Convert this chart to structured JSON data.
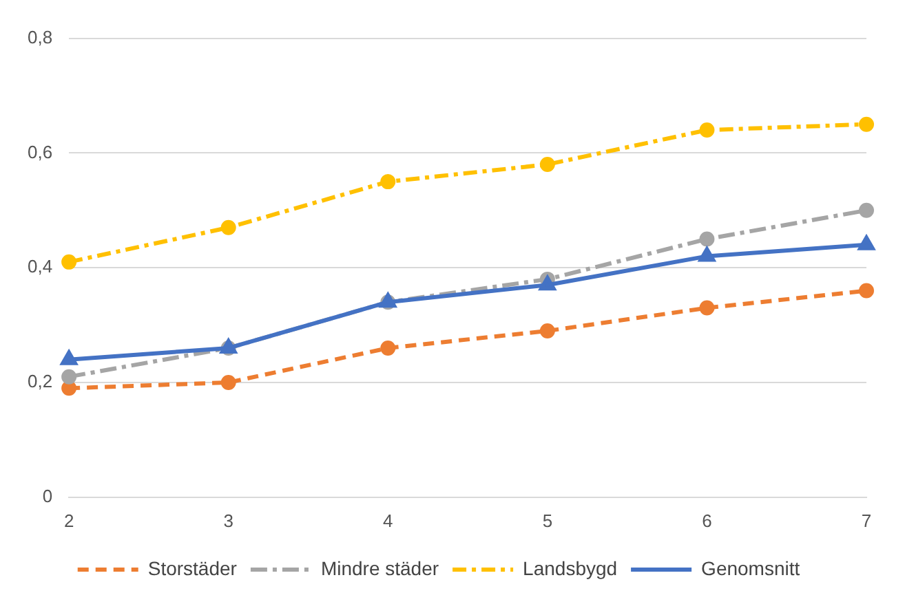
{
  "chart_data": {
    "type": "line",
    "categories": [
      "2",
      "3",
      "4",
      "5",
      "6",
      "7"
    ],
    "series": [
      {
        "name": "Storstäder",
        "color": "#ed7d31",
        "values": [
          0.19,
          0.2,
          0.26,
          0.29,
          0.33,
          0.36
        ],
        "marker": "circle",
        "line_style": "dashed"
      },
      {
        "name": "Mindre städer",
        "color": "#a5a5a5",
        "values": [
          0.21,
          0.26,
          0.34,
          0.38,
          0.45,
          0.5
        ],
        "marker": "circle",
        "line_style": "dashed"
      },
      {
        "name": "Landsbygd",
        "color": "#ffc000",
        "values": [
          0.41,
          0.47,
          0.55,
          0.58,
          0.64,
          0.65
        ],
        "marker": "circle",
        "line_style": "dashed"
      },
      {
        "name": "Genomsnitt",
        "color": "#4472c4",
        "values": [
          0.24,
          0.26,
          0.34,
          0.37,
          0.42,
          0.44
        ],
        "marker": "triangle",
        "line_style": "solid"
      }
    ],
    "ylim": [
      0,
      0.8
    ],
    "yticks": [
      0,
      {
        "value": 0.2,
        "label": "0,2"
      },
      {
        "value": 0.4,
        "label": "0,4"
      },
      {
        "value": 0.6,
        "label": "0,6"
      },
      {
        "value": 0.8,
        "label": "0,8"
      }
    ],
    "grid": "y",
    "legend": "bottom"
  }
}
